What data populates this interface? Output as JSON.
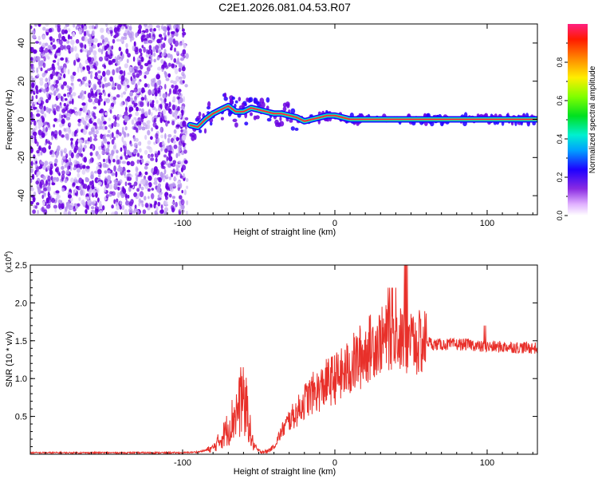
{
  "title": "C2E1.2026.081.04.53.R07",
  "colors": {
    "snr_line": "#e8302a",
    "dot_purple": "#6a00e0",
    "dot_light": "#b894f0"
  },
  "chart_data": [
    {
      "type": "heatmap",
      "xlabel": "Height of straight line (km)",
      "ylabel": "Frequency (Hz)",
      "xlim": [
        -200,
        133
      ],
      "ylim": [
        -50,
        50
      ],
      "x_ticks": [
        -100,
        0,
        100
      ],
      "y_ticks": [
        -40,
        -20,
        0,
        20,
        40
      ],
      "noise_region_x": [
        -200,
        -97
      ],
      "signal_track": {
        "x": [
          -95,
          -90,
          -85,
          -80,
          -75,
          -70,
          -65,
          -60,
          -55,
          -50,
          -45,
          -40,
          -35,
          -30,
          -25,
          -20,
          -15,
          -10,
          -5,
          0,
          5,
          10,
          20,
          30,
          40,
          50,
          60,
          80,
          100,
          120,
          133
        ],
        "y": [
          -3,
          -4,
          0,
          3,
          5,
          7,
          4,
          4,
          6,
          5,
          4,
          3,
          3,
          2,
          1,
          -1,
          0,
          1,
          2,
          2,
          1,
          0,
          0,
          0,
          0,
          0,
          0,
          0,
          0,
          0,
          0
        ]
      },
      "colorbar": {
        "label": "Normalized spectral amplitude",
        "ticks": [
          0.0,
          0.2,
          0.4,
          0.6,
          0.8
        ],
        "tick_labels": [
          "0.0",
          "0.2",
          "0.4",
          "0.6",
          "0.8"
        ],
        "range": [
          0,
          1
        ]
      }
    },
    {
      "type": "line",
      "xlabel": "Height of straight line (km)",
      "ylabel": "SNR (10 * v/v)",
      "scale_label_prefix": "(x10",
      "scale_label_exp": "4",
      "scale_label_suffix": ")",
      "xlim": [
        -200,
        133
      ],
      "ylim": [
        0,
        2.5
      ],
      "x_ticks": [
        -100,
        0,
        100
      ],
      "y_ticks": [
        0.5,
        1.0,
        1.5,
        2.0,
        2.5
      ],
      "y_tick_labels": [
        "0.5",
        "1.0",
        "1.5",
        "2.0",
        "2.5"
      ],
      "series": [
        {
          "name": "SNR",
          "x": [
            -200,
            -180,
            -160,
            -140,
            -120,
            -100,
            -90,
            -85,
            -80,
            -75,
            -70,
            -65,
            -60,
            -57,
            -55,
            -52,
            -50,
            -45,
            -40,
            -35,
            -30,
            -25,
            -20,
            -15,
            -10,
            -5,
            0,
            5,
            10,
            15,
            20,
            25,
            30,
            35,
            40,
            45,
            50,
            55,
            60,
            65,
            70,
            75,
            80,
            85,
            90,
            95,
            100,
            105,
            110,
            115,
            120,
            125,
            133
          ],
          "values": [
            0.02,
            0.02,
            0.02,
            0.02,
            0.02,
            0.02,
            0.03,
            0.05,
            0.08,
            0.2,
            0.35,
            0.55,
            0.7,
            0.55,
            0.2,
            0.08,
            0.04,
            0.03,
            0.1,
            0.3,
            0.45,
            0.55,
            0.7,
            0.8,
            0.85,
            0.95,
            1.0,
            1.05,
            1.15,
            1.25,
            1.35,
            1.45,
            1.5,
            1.55,
            1.55,
            1.5,
            1.5,
            1.45,
            1.5,
            1.45,
            1.45,
            1.45,
            1.45,
            1.45,
            1.45,
            1.42,
            1.42,
            1.42,
            1.42,
            1.42,
            1.41,
            1.41,
            1.4
          ]
        }
      ]
    }
  ]
}
